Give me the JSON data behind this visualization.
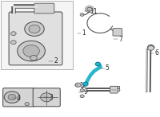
{
  "bg_color": "#ffffff",
  "line_color": "#555555",
  "highlight_color": "#29b5cc",
  "label_color": "#222222",
  "fig_width": 2.0,
  "fig_height": 1.47,
  "dpi": 100
}
